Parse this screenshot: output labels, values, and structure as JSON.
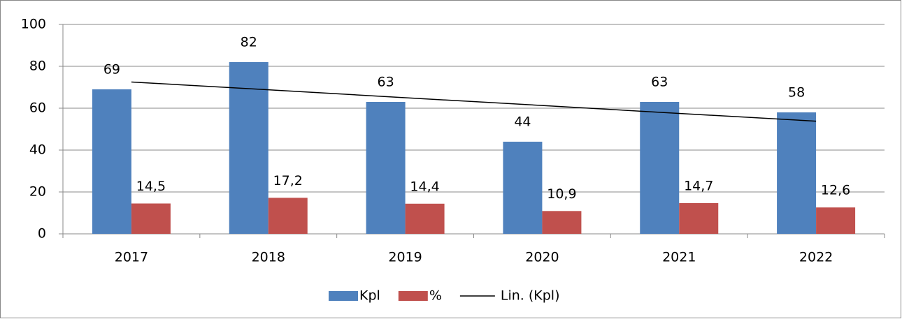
{
  "chart_data": {
    "type": "bar",
    "categories": [
      "2017",
      "2018",
      "2019",
      "2020",
      "2021",
      "2022"
    ],
    "series": [
      {
        "name": "Kpl",
        "color": "#4f81bd",
        "values": [
          69,
          82,
          63,
          44,
          63,
          58
        ]
      },
      {
        "name": "%",
        "color": "#c0504d",
        "values": [
          14.5,
          17.2,
          14.4,
          10.9,
          14.7,
          12.6
        ],
        "value_labels": [
          "14,5",
          "17,2",
          "14,4",
          "10,9",
          "14,7",
          "12,6"
        ]
      },
      {
        "name": "Lin. (Kpl)",
        "type": "line",
        "color": "#000000",
        "values": [
          72.5,
          68.8,
          65.0,
          61.3,
          57.5,
          53.8
        ]
      }
    ],
    "ylim": [
      0,
      100
    ],
    "yticks": [
      0,
      20,
      40,
      60,
      80,
      100
    ],
    "grid": true,
    "legend": "bottom"
  }
}
